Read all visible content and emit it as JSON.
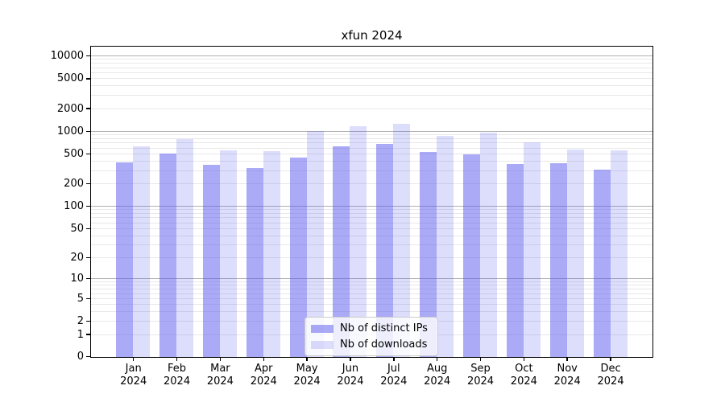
{
  "title": "xfun 2024",
  "chart_data": {
    "type": "bar",
    "title": "xfun 2024",
    "categories": [
      "Jan",
      "Feb",
      "Mar",
      "Apr",
      "May",
      "Jun",
      "Jul",
      "Aug",
      "Sep",
      "Oct",
      "Nov",
      "Dec"
    ],
    "category_year": "2024",
    "series": [
      {
        "name": "Nb of distinct IPs",
        "color": "#aaaaf6",
        "base_color": "#5555ee",
        "alpha": 0.5,
        "values": [
          389,
          515,
          362,
          325,
          455,
          640,
          695,
          540,
          498,
          373,
          383,
          312
        ]
      },
      {
        "name": "Nb of downloads",
        "color": "#ddddfc",
        "base_color": "#5555ee",
        "alpha": 0.2,
        "values": [
          647,
          800,
          565,
          549,
          1010,
          1180,
          1280,
          885,
          975,
          718,
          577,
          569
        ]
      }
    ],
    "yscale": "log10(1+x)",
    "yticks": [
      0,
      1,
      2,
      5,
      10,
      20,
      50,
      100,
      200,
      500,
      1000,
      2000,
      5000,
      10000
    ],
    "ylim": [
      0,
      13300
    ],
    "grid": "on",
    "major_grid_values": [
      10,
      100,
      1000,
      10000
    ],
    "major_grid_color": "#b0b0b0",
    "minor_grid_color": "#e8e8e8",
    "legend_position": "lower center",
    "xlabel": "",
    "ylabel": ""
  }
}
